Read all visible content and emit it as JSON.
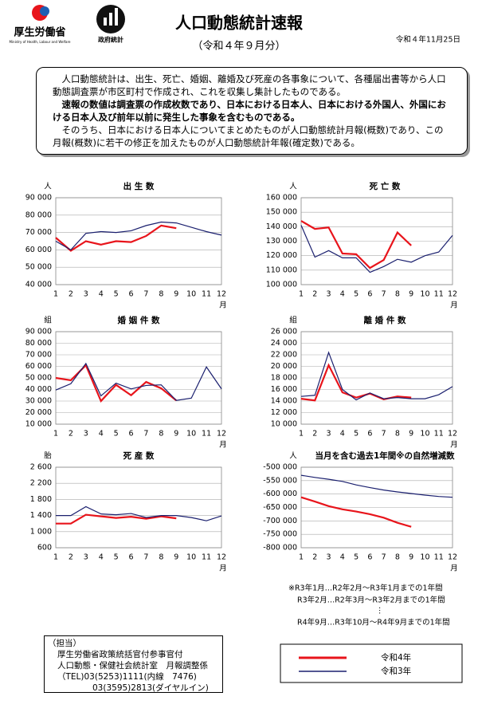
{
  "header": {
    "ministry": "厚生労働省",
    "ministry_en": "Ministry of Health, Labour and Welfare",
    "stats_logo": "政府統計",
    "title": "人口動態統計速報",
    "subtitle": "（令和４年９月分）",
    "date": "令和４年11月25日"
  },
  "intro": [
    "人口動態統計は、出生、死亡、婚姻、離婚及び死産の各事象について、各種届出書等から人口動態調査票が市区町村で作成され、これを収集し集計したものである。",
    "速報の数値は調査票の作成枚数であり、日本における日本人、日本における外国人、外国における日本人及び前年以前に発生した事象を含むものである。",
    "そのうち、日本における日本人についてまとめたものが人口動態統計月報(概数)であり、この月報(概数)に若干の修正を加えたものが人口動態統計年報(確定数)である。"
  ],
  "chart_data": [
    {
      "type": "line",
      "title": "出 生 数",
      "ylabel": "人",
      "xlabel": "月",
      "categories": [
        "1",
        "2",
        "3",
        "4",
        "5",
        "6",
        "7",
        "8",
        "9",
        "10",
        "11",
        "12"
      ],
      "ylim": [
        40000,
        90000
      ],
      "yticks": [
        {
          "value": 40000,
          "label": "40 000"
        },
        {
          "value": 50000,
          "label": "50 000"
        },
        {
          "value": 60000,
          "label": "60 000"
        },
        {
          "value": 70000,
          "label": "70 000"
        },
        {
          "value": 80000,
          "label": "80 000"
        },
        {
          "value": 90000,
          "label": "90 000"
        }
      ],
      "grid": true,
      "series": [
        {
          "name": "令和4年",
          "color": "#e8141b",
          "values": [
            67000,
            59500,
            65000,
            63000,
            65000,
            64500,
            68000,
            74000,
            72500,
            null,
            null,
            null
          ]
        },
        {
          "name": "令和3年",
          "color": "#1a1f6e",
          "values": [
            65000,
            60000,
            69500,
            70500,
            70000,
            71000,
            74000,
            76000,
            75500,
            73000,
            70500,
            68500
          ]
        }
      ]
    },
    {
      "type": "line",
      "title": "死 亡 数",
      "ylabel": "人",
      "xlabel": "月",
      "categories": [
        "1",
        "2",
        "3",
        "4",
        "5",
        "6",
        "7",
        "8",
        "9",
        "10",
        "11",
        "12"
      ],
      "ylim": [
        100000,
        160000
      ],
      "yticks": [
        {
          "value": 100000,
          "label": "100 000"
        },
        {
          "value": 110000,
          "label": "110 000"
        },
        {
          "value": 120000,
          "label": "120 000"
        },
        {
          "value": 130000,
          "label": "130 000"
        },
        {
          "value": 140000,
          "label": "140 000"
        },
        {
          "value": 150000,
          "label": "150 000"
        },
        {
          "value": 160000,
          "label": "160 000"
        }
      ],
      "grid": true,
      "series": [
        {
          "color": "#e8141b",
          "values": [
            144000,
            138500,
            139500,
            121500,
            121000,
            111500,
            117000,
            136000,
            127000,
            null,
            null,
            null
          ]
        },
        {
          "color": "#1a1f6e",
          "values": [
            141000,
            119000,
            123500,
            118500,
            118500,
            108500,
            112500,
            117500,
            115500,
            120000,
            122500,
            134000
          ]
        }
      ]
    },
    {
      "type": "line",
      "title": "婚 姻 件 数",
      "ylabel": "組",
      "xlabel": "月",
      "categories": [
        "1",
        "2",
        "3",
        "4",
        "5",
        "6",
        "7",
        "8",
        "9",
        "10",
        "11",
        "12"
      ],
      "ylim": [
        10000,
        90000
      ],
      "yticks": [
        {
          "value": 10000,
          "label": "10 000"
        },
        {
          "value": 20000,
          "label": "20 000"
        },
        {
          "value": 30000,
          "label": "30 000"
        },
        {
          "value": 40000,
          "label": "40 000"
        },
        {
          "value": 50000,
          "label": "50 000"
        },
        {
          "value": 60000,
          "label": "60 000"
        },
        {
          "value": 70000,
          "label": "70 000"
        },
        {
          "value": 80000,
          "label": "80 000"
        },
        {
          "value": 90000,
          "label": "90 000"
        }
      ],
      "grid": true,
      "series": [
        {
          "color": "#e8141b",
          "values": [
            50000,
            48000,
            61000,
            30000,
            44000,
            35000,
            46500,
            41000,
            30500,
            null,
            null,
            null
          ]
        },
        {
          "color": "#1a1f6e",
          "values": [
            39500,
            45000,
            62500,
            34500,
            45500,
            40500,
            43500,
            44000,
            30500,
            32500,
            59500,
            40500
          ]
        }
      ]
    },
    {
      "type": "line",
      "title": "離 婚 件 数",
      "ylabel": "組",
      "xlabel": "月",
      "categories": [
        "1",
        "2",
        "3",
        "4",
        "5",
        "6",
        "7",
        "8",
        "9",
        "10",
        "11",
        "12"
      ],
      "ylim": [
        10000,
        26000
      ],
      "yticks": [
        {
          "value": 10000,
          "label": "10 000"
        },
        {
          "value": 12000,
          "label": "12 000"
        },
        {
          "value": 14000,
          "label": "14 000"
        },
        {
          "value": 16000,
          "label": "16 000"
        },
        {
          "value": 18000,
          "label": "18 000"
        },
        {
          "value": 20000,
          "label": "20 000"
        },
        {
          "value": 22000,
          "label": "22 000"
        },
        {
          "value": 24000,
          "label": "24 000"
        },
        {
          "value": 26000,
          "label": "26 000"
        }
      ],
      "grid": true,
      "series": [
        {
          "color": "#e8141b",
          "values": [
            14400,
            14100,
            20200,
            15500,
            14600,
            15300,
            14300,
            14800,
            14600,
            null,
            null,
            null
          ]
        },
        {
          "color": "#1a1f6e",
          "values": [
            14800,
            15000,
            22400,
            16000,
            14200,
            15400,
            14400,
            14600,
            14400,
            14400,
            15100,
            16500
          ]
        }
      ]
    },
    {
      "type": "line",
      "title": "死 産 数",
      "ylabel": "胎",
      "xlabel": "月",
      "categories": [
        "1",
        "2",
        "3",
        "4",
        "5",
        "6",
        "7",
        "8",
        "9",
        "10",
        "11",
        "12"
      ],
      "ylim": [
        600,
        2600
      ],
      "yticks": [
        600,
        {
          "value": 1000,
          "label": "1 000"
        },
        {
          "value": 1400,
          "label": "1 400"
        },
        {
          "value": 1800,
          "label": "1 800"
        },
        {
          "value": 2200,
          "label": "2 200"
        },
        {
          "value": 2600,
          "label": "2 600"
        }
      ],
      "grid": true,
      "series": [
        {
          "color": "#e8141b",
          "values": [
            1200,
            1200,
            1420,
            1380,
            1340,
            1370,
            1320,
            1380,
            1330,
            null,
            null,
            null
          ]
        },
        {
          "color": "#1a1f6e",
          "values": [
            1400,
            1400,
            1620,
            1440,
            1420,
            1450,
            1350,
            1400,
            1400,
            1350,
            1270,
            1390
          ]
        }
      ]
    },
    {
      "type": "line",
      "title": "当月を含む過去1年間※の自然増減数",
      "ylabel": "人",
      "xlabel": "月",
      "categories": [
        "1",
        "2",
        "3",
        "4",
        "5",
        "6",
        "7",
        "8",
        "9",
        "10",
        "11",
        "12"
      ],
      "ylim": [
        -800000,
        -500000
      ],
      "yticks": [
        {
          "value": -800000,
          "label": "-800 000"
        },
        {
          "value": -750000,
          "label": "-750 000"
        },
        {
          "value": -700000,
          "label": "-700 000"
        },
        {
          "value": -650000,
          "label": "-650 000"
        },
        {
          "value": -600000,
          "label": "-600 000"
        },
        {
          "value": -550000,
          "label": "-550 000"
        },
        {
          "value": -500000,
          "label": "-500 000"
        }
      ],
      "grid": true,
      "series": [
        {
          "color": "#e8141b",
          "values": [
            -612000,
            -628000,
            -645000,
            -657000,
            -665000,
            -675000,
            -688000,
            -707000,
            -722000,
            null,
            null,
            null
          ]
        },
        {
          "color": "#1a1f6e",
          "values": [
            -530000,
            -538000,
            -545000,
            -553000,
            -566000,
            -576000,
            -585000,
            -592000,
            -598000,
            -604000,
            -609000,
            -612000
          ]
        }
      ]
    }
  ],
  "footnote": [
    "※R3年1月…R2年2月～R3年1月までの1年間",
    "R3年2月…R2年3月～R3年2月までの1年間",
    "⋮",
    "R4年9月…R3年10月～R4年9月までの1年間"
  ],
  "contact": [
    "（担当）",
    "厚生労働省政策統括官付参事官付",
    "人口動態・保健社会統計室　月報調整係",
    "（TEL)03(5253)1111(内線　7476)",
    "03(3595)2813(ダイヤルイン)"
  ]
}
